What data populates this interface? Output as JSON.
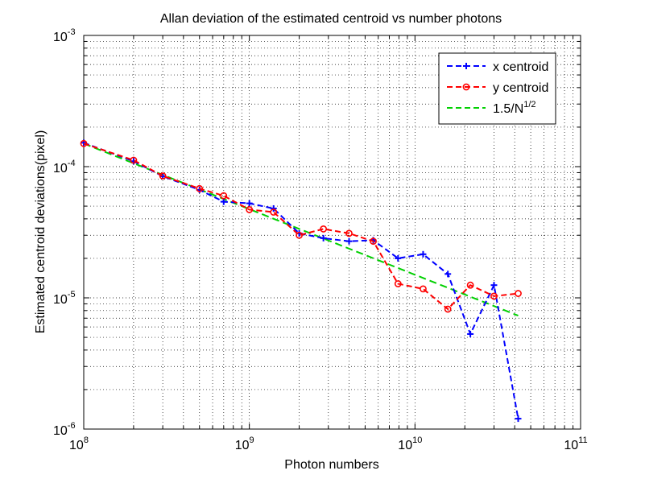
{
  "chart_data": {
    "type": "line",
    "title": "Allan deviation of the estimated centroid vs number photons",
    "xlabel": "Photon numbers",
    "ylabel": "Estimated centroid deviations(pixel)",
    "xscale": "log",
    "yscale": "log",
    "xlim": [
      100000000,
      100000000000
    ],
    "ylim": [
      1e-06,
      0.001
    ],
    "grid": true,
    "legend_position": "top-right",
    "x_tick_labels": [
      {
        "base": "10",
        "exp": "8"
      },
      {
        "base": "10",
        "exp": "9"
      },
      {
        "base": "10",
        "exp": "10"
      },
      {
        "base": "10",
        "exp": "11"
      }
    ],
    "y_tick_labels": [
      {
        "base": "10",
        "exp": "-3"
      },
      {
        "base": "10",
        "exp": "-4"
      },
      {
        "base": "10",
        "exp": "-5"
      },
      {
        "base": "10",
        "exp": "-6"
      }
    ],
    "series": [
      {
        "name": "x centroid",
        "color": "#0000ff",
        "marker": "plus",
        "x": [
          100000000,
          200000000,
          300000000,
          500000000,
          700000000,
          1000000000,
          1400000000,
          2000000000,
          2800000000,
          4000000000,
          5600000000,
          7900000000,
          11200000000,
          15800000000,
          21600000000,
          30000000000,
          42000000000
        ],
        "values": [
          0.000152,
          0.00011,
          8.45e-05,
          6.65e-05,
          5.4e-05,
          5.25e-05,
          4.8e-05,
          3.1e-05,
          2.85e-05,
          2.7e-05,
          2.75e-05,
          2e-05,
          2.15e-05,
          1.52e-05,
          5.3e-06,
          1.25e-05,
          1.2e-06
        ]
      },
      {
        "name": "y centroid",
        "color": "#ff0000",
        "marker": "circle",
        "x": [
          100000000,
          200000000,
          300000000,
          500000000,
          700000000,
          1000000000,
          1400000000,
          2000000000,
          2800000000,
          4000000000,
          5600000000,
          7900000000,
          11200000000,
          15800000000,
          21600000000,
          30000000000,
          42000000000
        ],
        "values": [
          0.00015,
          0.000112,
          8.5e-05,
          6.8e-05,
          6e-05,
          4.7e-05,
          4.5e-05,
          3e-05,
          3.35e-05,
          3.1e-05,
          2.7e-05,
          1.28e-05,
          1.17e-05,
          8.2e-06,
          1.25e-05,
          1.03e-05,
          1.08e-05
        ]
      },
      {
        "name_main": "1.5/N",
        "name_sup": "1/2",
        "name": "1.5/N^1/2",
        "color": "#00d000",
        "marker": "none",
        "x": [
          100000000,
          42000000000
        ],
        "values": [
          0.00015,
          7.32e-06
        ]
      }
    ]
  }
}
